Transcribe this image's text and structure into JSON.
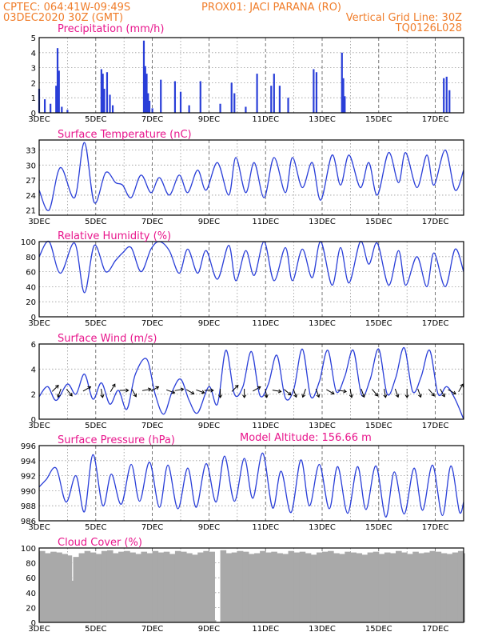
{
  "header": {
    "line1_left": "CPTEC:    064:41W-09:49S",
    "line1_mid": "PROX01: JACI PARANA (RO)",
    "line2_left": "03DEC2020 30Z (GMT)",
    "line2_right": "Vertical Grid Line: 30Z",
    "line3_right": "TQ0126L028"
  },
  "model_altitude": "Model Altitude: 156.66 m",
  "colors": {
    "header": "#f07d2a",
    "panel_title": "#e8168c",
    "series": "#2a3fd8",
    "cloud": "#a9a9a9",
    "wind_arrow": "#000000"
  },
  "chart_data": [
    {
      "type": "bar",
      "title": "Precipitation (mm/h)",
      "ylim": [
        0,
        5
      ],
      "yticks": [
        "0",
        "1",
        "2",
        "3",
        "4",
        "5"
      ],
      "xticks": [
        "3DEC",
        "5DEC",
        "7DEC",
        "9DEC",
        "11DEC",
        "13DEC",
        "15DEC",
        "17DEC"
      ],
      "x_days": [
        3.0,
        3.2,
        3.4,
        3.6,
        3.65,
        3.7,
        3.8,
        4.0,
        5.2,
        5.25,
        5.3,
        5.4,
        5.5,
        5.6,
        6.7,
        6.75,
        6.8,
        6.85,
        6.9,
        7.0,
        7.3,
        7.8,
        8.0,
        8.3,
        8.7,
        9.4,
        9.8,
        9.9,
        10.3,
        10.7,
        11.2,
        11.3,
        11.5,
        11.8,
        12.7,
        12.8,
        13.7,
        13.75,
        13.8,
        17.3,
        17.4,
        17.5
      ],
      "values": [
        1.6,
        0.9,
        0.6,
        1.8,
        4.3,
        2.8,
        0.4,
        0.2,
        2.9,
        2.6,
        1.6,
        2.7,
        1.2,
        0.5,
        4.8,
        3.1,
        2.6,
        1.3,
        0.8,
        0.3,
        2.2,
        2.1,
        1.4,
        0.5,
        2.1,
        0.6,
        2.0,
        1.3,
        0.4,
        2.6,
        1.8,
        2.6,
        1.8,
        1.0,
        2.9,
        2.7,
        4.0,
        2.3,
        1.1,
        2.3,
        2.4,
        1.5
      ]
    },
    {
      "type": "line",
      "title": "Surface Temperature (nC)",
      "ylim": [
        20,
        35
      ],
      "yticks": [
        "21",
        "24",
        "27",
        "30",
        "33"
      ],
      "xticks": [
        "3DEC",
        "5DEC",
        "7DEC",
        "9DEC",
        "11DEC",
        "13DEC",
        "15DEC",
        "17DEC"
      ],
      "x": [
        3.0,
        3.35,
        3.75,
        4.25,
        4.6,
        4.95,
        5.35,
        5.7,
        5.95,
        6.25,
        6.6,
        6.95,
        7.25,
        7.6,
        7.95,
        8.25,
        8.6,
        8.9,
        9.3,
        9.7,
        9.95,
        10.3,
        10.6,
        10.95,
        11.3,
        11.7,
        11.95,
        12.3,
        12.65,
        12.95,
        13.35,
        13.65,
        13.95,
        14.35,
        14.65,
        14.95,
        15.35,
        15.7,
        15.95,
        16.35,
        16.7,
        16.95,
        17.35,
        17.7,
        18.0
      ],
      "y": [
        25.0,
        21.0,
        29.5,
        23.5,
        34.5,
        22.5,
        28.5,
        26.5,
        26.0,
        23.5,
        28.0,
        24.5,
        27.5,
        24.0,
        28.0,
        24.5,
        29.0,
        25.0,
        30.5,
        24.0,
        31.5,
        24.5,
        30.5,
        23.5,
        31.5,
        24.5,
        31.5,
        25.5,
        30.5,
        23.0,
        32.0,
        26.0,
        32.0,
        25.5,
        30.5,
        24.0,
        32.5,
        26.5,
        32.5,
        25.5,
        32.0,
        26.0,
        33.0,
        25.0,
        29.0
      ]
    },
    {
      "type": "line",
      "title": "Relative Humidity (%)",
      "ylim": [
        0,
        100
      ],
      "yticks": [
        "0",
        "20",
        "40",
        "60",
        "80",
        "100"
      ],
      "xticks": [
        "3DEC",
        "5DEC",
        "7DEC",
        "9DEC",
        "11DEC",
        "13DEC",
        "15DEC",
        "17DEC"
      ],
      "x": [
        3.0,
        3.35,
        3.75,
        4.25,
        4.6,
        4.95,
        5.35,
        5.7,
        5.95,
        6.25,
        6.6,
        6.95,
        7.25,
        7.6,
        7.95,
        8.25,
        8.6,
        8.9,
        9.3,
        9.7,
        9.95,
        10.3,
        10.6,
        10.95,
        11.3,
        11.7,
        11.95,
        12.3,
        12.65,
        12.95,
        13.35,
        13.65,
        13.95,
        14.35,
        14.65,
        14.95,
        15.35,
        15.7,
        15.95,
        16.35,
        16.7,
        16.95,
        17.35,
        17.7,
        18.0
      ],
      "y": [
        80,
        100,
        58,
        98,
        32,
        95,
        60,
        75,
        85,
        92,
        60,
        90,
        100,
        88,
        58,
        90,
        58,
        88,
        50,
        95,
        48,
        88,
        55,
        100,
        48,
        92,
        48,
        90,
        52,
        100,
        42,
        92,
        45,
        100,
        70,
        98,
        42,
        88,
        42,
        80,
        40,
        85,
        40,
        90,
        60
      ]
    },
    {
      "type": "line",
      "title": "Surface Wind (m/s)",
      "ylim": [
        0,
        6
      ],
      "yticks": [
        "0",
        "2",
        "4",
        "6"
      ],
      "xticks": [
        "3DEC",
        "5DEC",
        "7DEC",
        "9DEC",
        "11DEC",
        "13DEC",
        "15DEC",
        "17DEC"
      ],
      "x": [
        3.0,
        3.3,
        3.6,
        4.0,
        4.3,
        4.6,
        4.9,
        5.2,
        5.5,
        5.8,
        6.1,
        6.4,
        6.8,
        7.1,
        7.4,
        7.7,
        8.0,
        8.3,
        8.6,
        9.0,
        9.3,
        9.6,
        9.9,
        10.2,
        10.5,
        10.8,
        11.1,
        11.4,
        11.7,
        12.0,
        12.3,
        12.6,
        12.9,
        13.2,
        13.5,
        13.8,
        14.1,
        14.4,
        14.7,
        15.0,
        15.3,
        15.6,
        15.9,
        16.2,
        16.5,
        16.8,
        17.1,
        17.4,
        17.7,
        18.0
      ],
      "y": [
        1.8,
        2.6,
        1.5,
        2.8,
        2.0,
        3.6,
        1.6,
        2.9,
        1.2,
        2.3,
        0.8,
        3.6,
        4.8,
        2.0,
        0.4,
        2.2,
        3.2,
        1.5,
        0.5,
        2.6,
        1.2,
        5.5,
        2.0,
        2.6,
        5.4,
        1.9,
        2.8,
        5.1,
        1.7,
        2.4,
        5.6,
        1.8,
        3.0,
        5.5,
        2.2,
        3.4,
        5.5,
        1.9,
        3.2,
        5.6,
        2.0,
        3.3,
        5.7,
        2.2,
        3.4,
        5.5,
        2.0,
        2.6,
        1.6,
        0.0
      ],
      "arrows": [
        {
          "day": 3.5,
          "dir_deg": 45
        },
        {
          "day": 3.75,
          "dir_deg": 200
        },
        {
          "day": 4.0,
          "dir_deg": 140
        },
        {
          "day": 4.6,
          "dir_deg": 60
        },
        {
          "day": 5.2,
          "dir_deg": 170
        },
        {
          "day": 5.55,
          "dir_deg": 30
        },
        {
          "day": 5.9,
          "dir_deg": 90
        },
        {
          "day": 6.3,
          "dir_deg": 150
        },
        {
          "day": 6.7,
          "dir_deg": 80
        },
        {
          "day": 7.0,
          "dir_deg": 60
        },
        {
          "day": 7.55,
          "dir_deg": 110
        },
        {
          "day": 7.85,
          "dir_deg": 80
        },
        {
          "day": 8.25,
          "dir_deg": 120
        },
        {
          "day": 8.6,
          "dir_deg": 110
        },
        {
          "day": 8.9,
          "dir_deg": 90
        },
        {
          "day": 9.4,
          "dir_deg": 180
        },
        {
          "day": 9.85,
          "dir_deg": 45
        },
        {
          "day": 10.25,
          "dir_deg": 180
        },
        {
          "day": 10.6,
          "dir_deg": 60
        },
        {
          "day": 11.0,
          "dir_deg": 170
        },
        {
          "day": 11.3,
          "dir_deg": 100
        },
        {
          "day": 11.7,
          "dir_deg": 130
        },
        {
          "day": 12.0,
          "dir_deg": 160
        },
        {
          "day": 12.4,
          "dir_deg": 200
        },
        {
          "day": 12.8,
          "dir_deg": 160
        },
        {
          "day": 13.2,
          "dir_deg": 120
        },
        {
          "day": 13.6,
          "dir_deg": 100
        },
        {
          "day": 14.0,
          "dir_deg": 170
        },
        {
          "day": 14.4,
          "dir_deg": 160
        },
        {
          "day": 14.8,
          "dir_deg": 140
        },
        {
          "day": 15.2,
          "dir_deg": 170
        },
        {
          "day": 15.6,
          "dir_deg": 160
        },
        {
          "day": 16.0,
          "dir_deg": 180
        },
        {
          "day": 16.4,
          "dir_deg": 160
        },
        {
          "day": 16.8,
          "dir_deg": 140
        },
        {
          "day": 17.2,
          "dir_deg": 150
        },
        {
          "day": 17.5,
          "dir_deg": 120
        },
        {
          "day": 17.85,
          "dir_deg": 30
        }
      ]
    },
    {
      "type": "line",
      "title": "Surface Pressure (hPa)",
      "ylim": [
        986,
        996
      ],
      "yticks": [
        "986",
        "988",
        "990",
        "992",
        "994",
        "996"
      ],
      "xticks": [
        "3DEC",
        "5DEC",
        "7DEC",
        "9DEC",
        "11DEC",
        "13DEC",
        "15DEC",
        "17DEC"
      ],
      "x": [
        3.0,
        3.25,
        3.6,
        3.95,
        4.3,
        4.6,
        4.9,
        5.25,
        5.55,
        5.9,
        6.25,
        6.55,
        6.9,
        7.25,
        7.55,
        7.9,
        8.25,
        8.55,
        8.9,
        9.25,
        9.55,
        9.9,
        10.25,
        10.55,
        10.9,
        11.25,
        11.55,
        11.9,
        12.25,
        12.55,
        12.9,
        13.25,
        13.55,
        13.9,
        14.25,
        14.55,
        14.9,
        15.25,
        15.55,
        15.9,
        16.25,
        16.55,
        16.9,
        17.25,
        17.55,
        17.85,
        18.0
      ],
      "y": [
        990.5,
        991.5,
        993.0,
        988.5,
        992.0,
        987.2,
        994.8,
        988.0,
        992.2,
        988.2,
        993.5,
        988.6,
        993.8,
        987.8,
        993.4,
        987.6,
        993.0,
        987.8,
        993.6,
        988.5,
        994.6,
        988.6,
        994.3,
        989.0,
        995.0,
        987.7,
        992.6,
        987.1,
        994.1,
        988.0,
        993.5,
        987.6,
        993.2,
        987.0,
        993.2,
        987.5,
        993.3,
        986.5,
        992.5,
        986.9,
        993.0,
        987.4,
        993.4,
        986.7,
        993.3,
        987.2,
        988.5
      ]
    },
    {
      "type": "bar",
      "title": "Cloud Cover (%)",
      "ylim": [
        0,
        100
      ],
      "yticks": [
        "0",
        "20",
        "40",
        "60",
        "80",
        "100"
      ],
      "xticks": [
        "3DEC",
        "5DEC",
        "7DEC",
        "9DEC",
        "11DEC",
        "13DEC",
        "15DEC",
        "17DEC"
      ],
      "x_days": [
        3.0,
        3.2,
        3.4,
        3.6,
        3.8,
        4.0,
        4.15,
        4.2,
        4.4,
        4.6,
        4.8,
        5.0,
        5.2,
        5.4,
        5.6,
        5.8,
        6.0,
        6.2,
        6.4,
        6.6,
        6.8,
        7.0,
        7.2,
        7.4,
        7.6,
        7.8,
        8.0,
        8.2,
        8.4,
        8.6,
        8.8,
        9.0,
        9.2,
        9.4,
        9.6,
        9.8,
        10.0,
        10.2,
        10.4,
        10.6,
        10.8,
        11.0,
        11.2,
        11.4,
        11.6,
        11.8,
        12.0,
        12.2,
        12.4,
        12.6,
        12.8,
        13.0,
        13.2,
        13.4,
        13.6,
        13.8,
        14.0,
        14.2,
        14.4,
        14.6,
        14.8,
        15.0,
        15.2,
        15.4,
        15.6,
        15.8,
        16.0,
        16.2,
        16.4,
        16.6,
        16.8,
        17.0,
        17.2,
        17.4,
        17.6,
        17.8,
        18.0
      ],
      "values": [
        96,
        93,
        95,
        94,
        92,
        90,
        56,
        88,
        93,
        96,
        94,
        92,
        96,
        97,
        93,
        95,
        96,
        94,
        92,
        95,
        93,
        96,
        94,
        95,
        92,
        96,
        95,
        93,
        91,
        94,
        96,
        95,
        3,
        97,
        93,
        94,
        96,
        95,
        92,
        93,
        96,
        94,
        95,
        93,
        92,
        96,
        94,
        95,
        93,
        91,
        94,
        95,
        96,
        93,
        92,
        95,
        94,
        93,
        91,
        94,
        95,
        92,
        94,
        93,
        96,
        94,
        92,
        95,
        93,
        94,
        96,
        95,
        93,
        92,
        94,
        96,
        93
      ]
    }
  ]
}
